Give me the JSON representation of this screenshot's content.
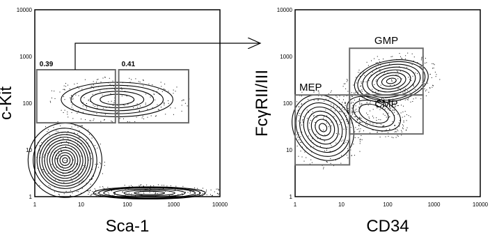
{
  "chart_data": [
    {
      "type": "scatter",
      "subtype": "flow-cytometry-contour",
      "xlabel": "Sca-1",
      "ylabel": "c-Kit",
      "xscale": "log",
      "yscale": "log",
      "xlim": [
        1,
        10000
      ],
      "ylim": [
        1,
        10000
      ],
      "xticks": [
        "1",
        "10",
        "100",
        "1000",
        "10000"
      ],
      "yticks": [
        "1",
        "10",
        "100",
        "1000",
        "10000"
      ],
      "populations": [
        {
          "x": 4.5,
          "y": 6
        },
        {
          "x": 60,
          "y": 120
        },
        {
          "x": 300,
          "y": 1.2
        }
      ],
      "gates": [
        {
          "label": "0.39",
          "x": [
            1.1,
            55
          ],
          "y": [
            38,
            520
          ]
        },
        {
          "label": "0.41",
          "x": [
            65,
            2100
          ],
          "y": [
            38,
            520
          ]
        }
      ]
    },
    {
      "type": "scatter",
      "subtype": "flow-cytometry-contour",
      "xlabel": "CD34",
      "ylabel": "FcγRII/III",
      "xscale": "log",
      "yscale": "log",
      "xlim": [
        1,
        10000
      ],
      "ylim": [
        1,
        10000
      ],
      "xticks": [
        "1",
        "10",
        "100",
        "1000",
        "10000"
      ],
      "yticks": [
        "1",
        "10",
        "100",
        "1000",
        "10000"
      ],
      "populations": [
        {
          "x": 4,
          "y": 30
        },
        {
          "x": 120,
          "y": 300
        },
        {
          "x": 50,
          "y": 60
        }
      ],
      "gates": [
        {
          "label": "MEP",
          "x": [
            1,
            15
          ],
          "y": [
            4.8,
            150
          ]
        },
        {
          "label": "GMP",
          "x": [
            15,
            580
          ],
          "y": [
            150,
            1500
          ]
        },
        {
          "label": "CMP",
          "x": [
            15,
            580
          ],
          "y": [
            22,
            150
          ]
        }
      ]
    }
  ]
}
